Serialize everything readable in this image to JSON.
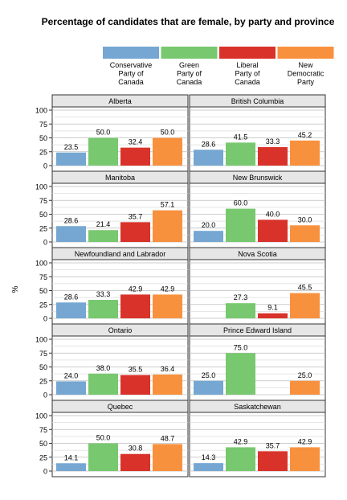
{
  "chart_data": {
    "type": "bar",
    "title": "Percentage of candidates that are female, by party and province",
    "ylabel": "%",
    "ylim": [
      0,
      100
    ],
    "yticks": [
      0,
      25,
      50,
      75,
      100
    ],
    "grid": true,
    "legend_position": "top",
    "series": [
      {
        "name": "Conservative Party of Canada",
        "label_lines": [
          "Conservative",
          "Party of",
          "Canada"
        ],
        "color": "#75a7d2"
      },
      {
        "name": "Green Party of Canada",
        "label_lines": [
          "Green",
          "Party of",
          "Canada"
        ],
        "color": "#78c86f"
      },
      {
        "name": "Liberal Party of Canada",
        "label_lines": [
          "Liberal",
          "Party of",
          "Canada"
        ],
        "color": "#d9322a"
      },
      {
        "name": "New Democratic Party",
        "label_lines": [
          "New",
          "Democratic",
          "Party"
        ],
        "color": "#f8913e"
      }
    ],
    "panels": [
      {
        "province": "Alberta",
        "values": [
          23.5,
          50.0,
          32.4,
          50.0
        ]
      },
      {
        "province": "British Columbia",
        "values": [
          28.6,
          41.5,
          33.3,
          45.2
        ]
      },
      {
        "province": "Manitoba",
        "values": [
          28.6,
          21.4,
          35.7,
          57.1
        ]
      },
      {
        "province": "New Brunswick",
        "values": [
          20.0,
          60.0,
          40.0,
          30.0
        ]
      },
      {
        "province": "Newfoundland and Labrador",
        "values": [
          28.6,
          33.3,
          42.9,
          42.9
        ]
      },
      {
        "province": "Nova Scotia",
        "values": [
          null,
          27.3,
          9.1,
          45.5
        ]
      },
      {
        "province": "Ontario",
        "values": [
          24.0,
          38.0,
          35.5,
          36.4
        ]
      },
      {
        "province": "Prince Edward Island",
        "values": [
          25.0,
          75.0,
          null,
          25.0
        ]
      },
      {
        "province": "Quebec",
        "values": [
          14.1,
          50.0,
          30.8,
          48.7
        ]
      },
      {
        "province": "Saskatchewan",
        "values": [
          14.3,
          42.9,
          35.7,
          42.9
        ]
      }
    ]
  }
}
